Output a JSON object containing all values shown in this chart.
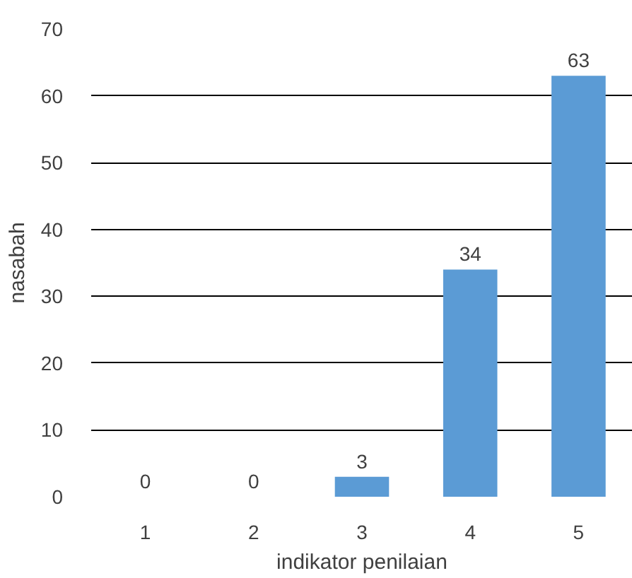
{
  "chart_data": {
    "type": "bar",
    "xlabel": "indikator penilaian",
    "ylabel": "nasabah",
    "categories": [
      "1",
      "2",
      "3",
      "4",
      "5"
    ],
    "values": [
      0,
      0,
      3,
      34,
      63
    ],
    "color": "#5b9bd5",
    "ylim": [
      0,
      70
    ],
    "yticks": [
      0,
      10,
      20,
      30,
      40,
      50,
      60,
      70
    ],
    "grid": "y",
    "data_labels": true
  }
}
